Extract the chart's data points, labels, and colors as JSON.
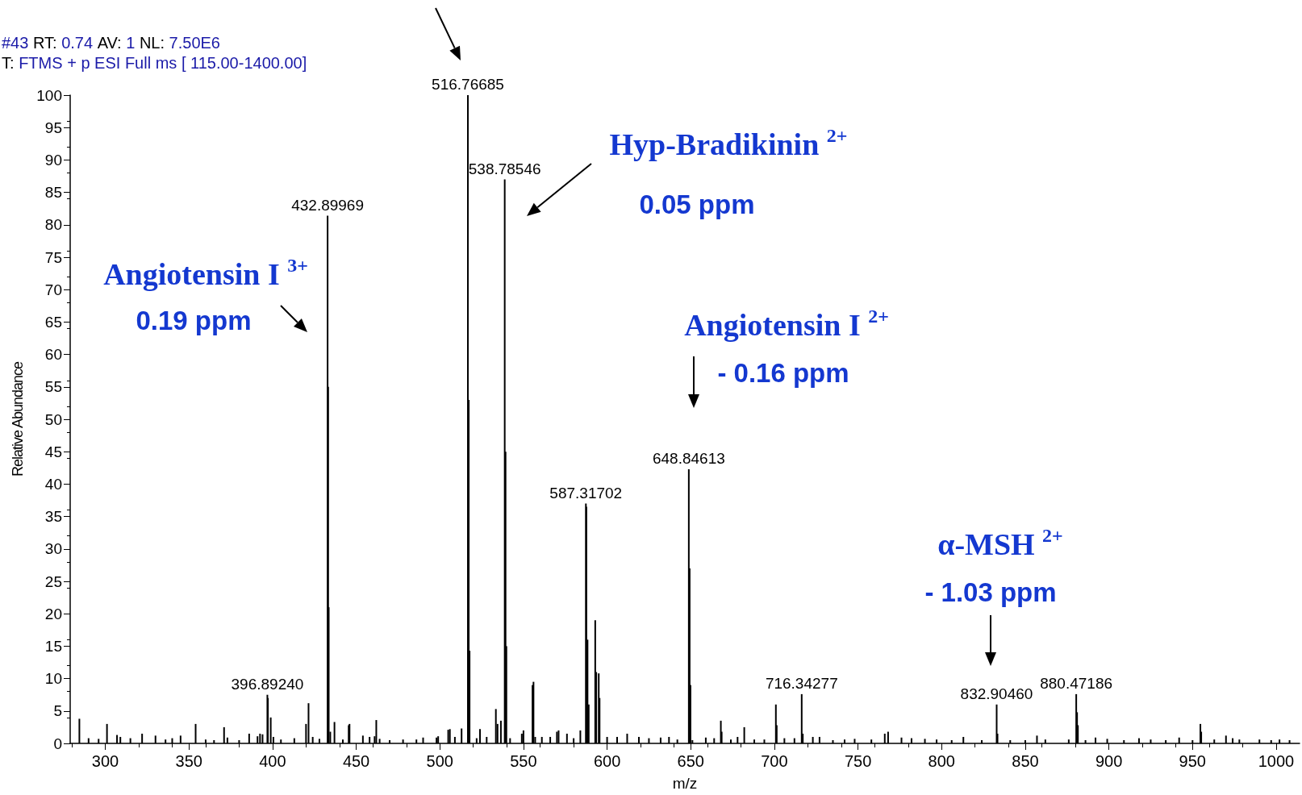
{
  "chart_data": {
    "type": "bar",
    "title": "#43 RT: 0.74 AV: 1 NL: 7.50E6",
    "subtitle": "T: FTMS + p ESI Full ms [ 115.00-1400.00]",
    "xlabel": "m/z",
    "ylabel": "Relative Abundance",
    "x": [
      284.5,
      290,
      296,
      301,
      307,
      309,
      315,
      322,
      330,
      336,
      340,
      345,
      354,
      360,
      365,
      371,
      373,
      380,
      386,
      391,
      392.5,
      394,
      396.89,
      397.2,
      398.9,
      400.5,
      405,
      413,
      420,
      421.5,
      424,
      428,
      432.9,
      433.23,
      433.57,
      434.5,
      437,
      442,
      445.5,
      446,
      454,
      458,
      461,
      462,
      464,
      470,
      478,
      486,
      490,
      498,
      499,
      505,
      506,
      509,
      513,
      516.77,
      517.27,
      517.77,
      522,
      524,
      528,
      533.5,
      534.5,
      536.5,
      538.79,
      539.29,
      539.79,
      542,
      549,
      550,
      555.4,
      556,
      557,
      561,
      566,
      570,
      571,
      576,
      580,
      584,
      587.32,
      587.6,
      588.3,
      589,
      592.9,
      593.5,
      595,
      595.5,
      600,
      606,
      612,
      619,
      625,
      632,
      637,
      642,
      648.85,
      649.35,
      649.85,
      651,
      659,
      664,
      668,
      668.5,
      674,
      678,
      682,
      688,
      694,
      700.9,
      701.4,
      706,
      712,
      716.34,
      717,
      723,
      727,
      735,
      742,
      748,
      758,
      766,
      768,
      776,
      782,
      790,
      797,
      806,
      813,
      824,
      832.9,
      833.4,
      841,
      850,
      857,
      862,
      876,
      880.47,
      880.97,
      881.47,
      886,
      892,
      899,
      909,
      918,
      925,
      934,
      942,
      950,
      954.7,
      955.2,
      963,
      970,
      974,
      978,
      990,
      997,
      1002,
      1008
    ],
    "values": [
      3.8,
      0.8,
      0.7,
      3,
      1.3,
      1,
      0.8,
      1.5,
      1.2,
      0.6,
      0.8,
      1.2,
      3,
      0.6,
      0.5,
      2.5,
      0.9,
      0.5,
      1.5,
      1.1,
      1.5,
      1.4,
      7.5,
      7,
      4,
      1,
      0.6,
      0.8,
      3,
      6.2,
      1,
      0.7,
      81.4,
      55,
      21,
      1.8,
      3.3,
      0.6,
      2.8,
      3,
      1.2,
      1,
      1.1,
      3.6,
      0.7,
      0.5,
      0.6,
      0.6,
      0.9,
      0.9,
      1.1,
      2.1,
      2.2,
      1,
      2.3,
      100,
      53,
      14.3,
      0.8,
      2.2,
      1,
      5.3,
      3,
      3.5,
      87,
      45,
      15,
      0.8,
      1.5,
      2,
      9,
      9.5,
      1,
      1,
      1,
      1.8,
      2,
      1.5,
      0.8,
      2,
      37,
      36.5,
      16,
      6,
      19,
      11,
      10.8,
      7,
      1,
      1,
      1.5,
      1,
      0.8,
      0.9,
      1,
      0.6,
      42.3,
      27,
      9,
      0.5,
      0.9,
      0.8,
      3.5,
      1.8,
      0.6,
      1,
      2.5,
      0.6,
      0.6,
      6,
      2.8,
      0.8,
      0.8,
      7.6,
      1.5,
      1,
      1,
      0.5,
      0.6,
      0.7,
      0.6,
      1.5,
      1.8,
      0.9,
      0.8,
      0.7,
      0.6,
      0.5,
      1,
      0.5,
      6,
      1.5,
      0.5,
      0.5,
      1.2,
      0.6,
      0.6,
      7.6,
      4.8,
      2.8,
      0.5,
      0.9,
      0.7,
      0.5,
      0.8,
      0.6,
      0.5,
      0.9,
      0.5,
      3,
      1.8,
      0.6,
      1.2,
      0.8,
      0.6,
      0.6,
      0.5,
      0.6,
      0.5
    ],
    "color": "#000000",
    "xlim": [
      279,
      1014
    ],
    "xticks": [
      300,
      350,
      400,
      450,
      500,
      550,
      600,
      650,
      700,
      750,
      800,
      850,
      900,
      950,
      1000
    ],
    "ylim": [
      0,
      100
    ],
    "yticks": [
      0,
      5,
      10,
      15,
      20,
      25,
      30,
      35,
      40,
      45,
      50,
      55,
      60,
      65,
      70,
      75,
      80,
      85,
      90,
      95,
      100
    ],
    "grid": false,
    "annotations": [
      "Angiotensin I $^{3+}$",
      "0.19 ppm",
      "Hyp-Bradikinin $^{2+}$",
      "0.05 ppm",
      "Angiotensin I $^{2+}$",
      "- 0.16 ppm",
      "α-MSH $^{2+}$",
      "- 1.03 ppm",
      {
        "text": "396.89240",
        "x": 396.89,
        "y": 7.5
      },
      {
        "text": "432.89969",
        "x": 432.9,
        "y": 81.4
      },
      {
        "text": "516.76685",
        "x": 516.77,
        "y": 100
      },
      {
        "text": "538.78546",
        "x": 538.79,
        "y": 87
      },
      {
        "text": "587.31702",
        "x": 587.32,
        "y": 37
      },
      {
        "text": "648.84613",
        "x": 648.85,
        "y": 42.3
      },
      {
        "text": "716.34277",
        "x": 716.34,
        "y": 7.6
      },
      {
        "text": "832.90460",
        "x": 832.9,
        "y": 6
      },
      {
        "text": "880.47186",
        "x": 880.47,
        "y": 7.6
      }
    ]
  }
}
